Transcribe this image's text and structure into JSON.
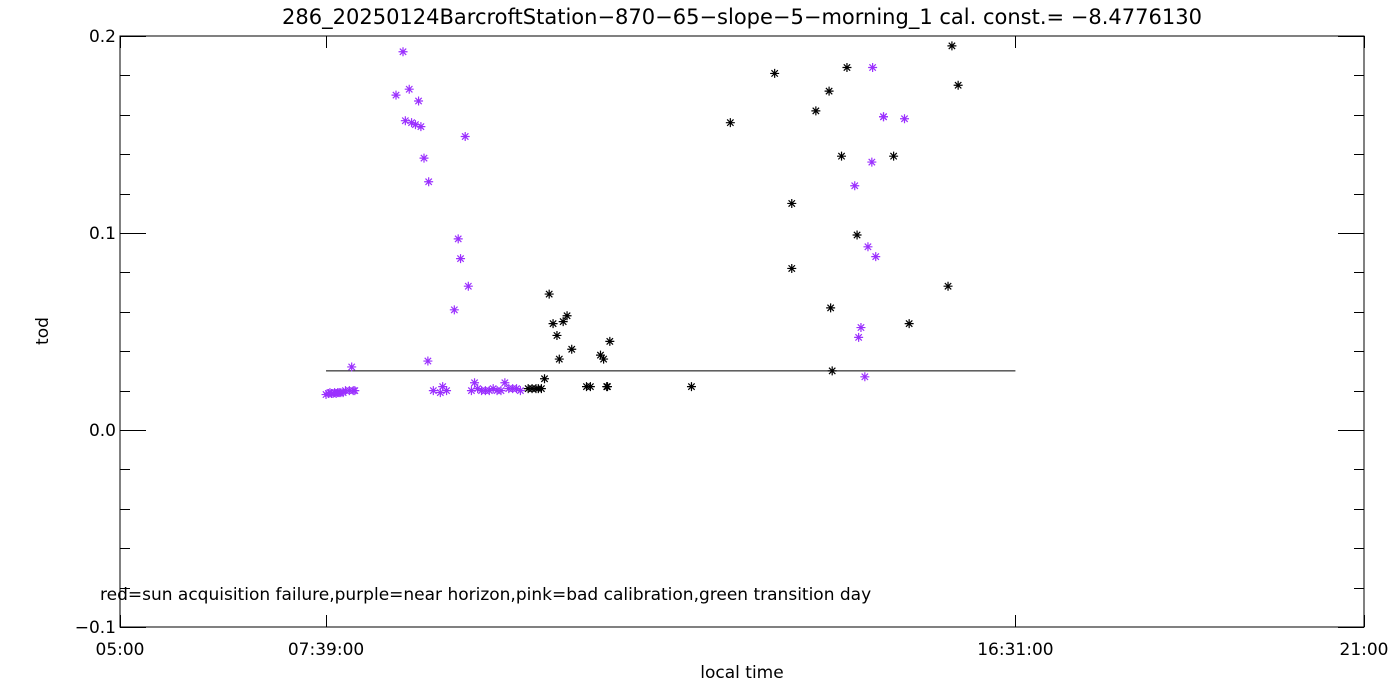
{
  "chart_data": {
    "type": "scatter",
    "title": "286_20250124BarcroftStation−870−65−slope−5−morning_1 cal. const.= −8.4776130",
    "xlabel": "local time",
    "ylabel": "tod",
    "annotation": "red=sun acquisition failure,purple=near horizon,pink=bad calibration,green transition day",
    "xlim_hours": [
      5,
      21
    ],
    "ylim": [
      -0.1,
      0.2
    ],
    "x_ticks": [
      {
        "hour": 5.0,
        "label": "05:00"
      },
      {
        "hour": 7.65,
        "label": "07:39:00"
      },
      {
        "hour": 16.5167,
        "label": "16:31:00"
      },
      {
        "hour": 21.0,
        "label": "21:00"
      }
    ],
    "y_ticks": [
      {
        "value": -0.1,
        "label": "−0.1"
      },
      {
        "value": 0.0,
        "label": "0.0"
      },
      {
        "value": 0.1,
        "label": "0.1"
      },
      {
        "value": 0.2,
        "label": "0.2"
      }
    ],
    "reference_line": {
      "x_start": 7.65,
      "x_end": 16.5167,
      "y": 0.03
    },
    "colors": {
      "marker": "#000000",
      "near_horizon": "#9b30ff",
      "axes": "#000000"
    },
    "series": [
      {
        "name": "",
        "color": "#9b30ff",
        "marker": "asterisk",
        "x": [
          7.65,
          7.68,
          7.7,
          7.72,
          7.74,
          7.76,
          7.78,
          7.8,
          7.82,
          7.84,
          7.87,
          7.9,
          7.95,
          7.98,
          8.0,
          8.02,
          8.55,
          8.64,
          8.67,
          8.72,
          8.75,
          8.8,
          8.84,
          8.87,
          8.91,
          8.96,
          8.97,
          9.03,
          9.12,
          9.15,
          9.2,
          9.3,
          9.35,
          9.38,
          9.44,
          9.48,
          9.52,
          9.56,
          9.6,
          9.65,
          9.7,
          9.75,
          9.8,
          9.85,
          9.9,
          9.95,
          10.0,
          10.05,
          10.1,
          10.15,
          14.45,
          14.5,
          14.53,
          14.58,
          14.62,
          14.67,
          14.68,
          14.72,
          14.82,
          14.82,
          15.09
        ],
        "y": [
          0.018,
          0.0185,
          0.019,
          0.0185,
          0.0185,
          0.019,
          0.0185,
          0.019,
          0.019,
          0.019,
          0.019,
          0.02,
          0.02,
          0.032,
          0.02,
          0.02,
          0.17,
          0.192,
          0.157,
          0.173,
          0.156,
          0.155,
          0.167,
          0.154,
          0.138,
          0.035,
          0.126,
          0.02,
          0.019,
          0.022,
          0.02,
          0.061,
          0.097,
          0.087,
          0.149,
          0.073,
          0.02,
          0.024,
          0.021,
          0.02,
          0.02,
          0.02,
          0.021,
          0.02,
          0.02,
          0.024,
          0.021,
          0.021,
          0.021,
          0.02,
          0.124,
          0.047,
          0.052,
          0.027,
          0.093,
          0.136,
          0.184,
          0.088,
          0.159,
          0.159,
          0.158
        ]
      },
      {
        "name": "",
        "color": "#000000",
        "marker": "asterisk",
        "x": [
          10.25,
          10.3,
          10.35,
          10.38,
          10.42,
          10.46,
          10.52,
          10.57,
          10.62,
          10.65,
          10.7,
          10.75,
          10.81,
          11.0,
          11.05,
          11.18,
          11.22,
          11.26,
          11.27,
          11.3,
          12.35,
          12.85,
          13.42,
          13.64,
          13.64,
          13.95,
          14.12,
          14.14,
          14.16,
          14.28,
          14.35,
          14.48,
          14.95,
          15.15,
          15.65
        ],
        "y": [
          0.021,
          0.021,
          0.021,
          0.021,
          0.021,
          0.026,
          0.069,
          0.054,
          0.048,
          0.036,
          0.055,
          0.058,
          0.041,
          0.022,
          0.022,
          0.038,
          0.036,
          0.022,
          0.022,
          0.045,
          0.022,
          0.156,
          0.181,
          0.082,
          0.115,
          0.162,
          0.172,
          0.062,
          0.03,
          0.139,
          0.184,
          0.099,
          0.139,
          0.054,
          0.073
        ]
      },
      {
        "name": "",
        "color": "#000000",
        "marker": "asterisk",
        "x": [
          15.7,
          15.78
        ],
        "y": [
          0.195,
          0.175
        ]
      }
    ]
  }
}
